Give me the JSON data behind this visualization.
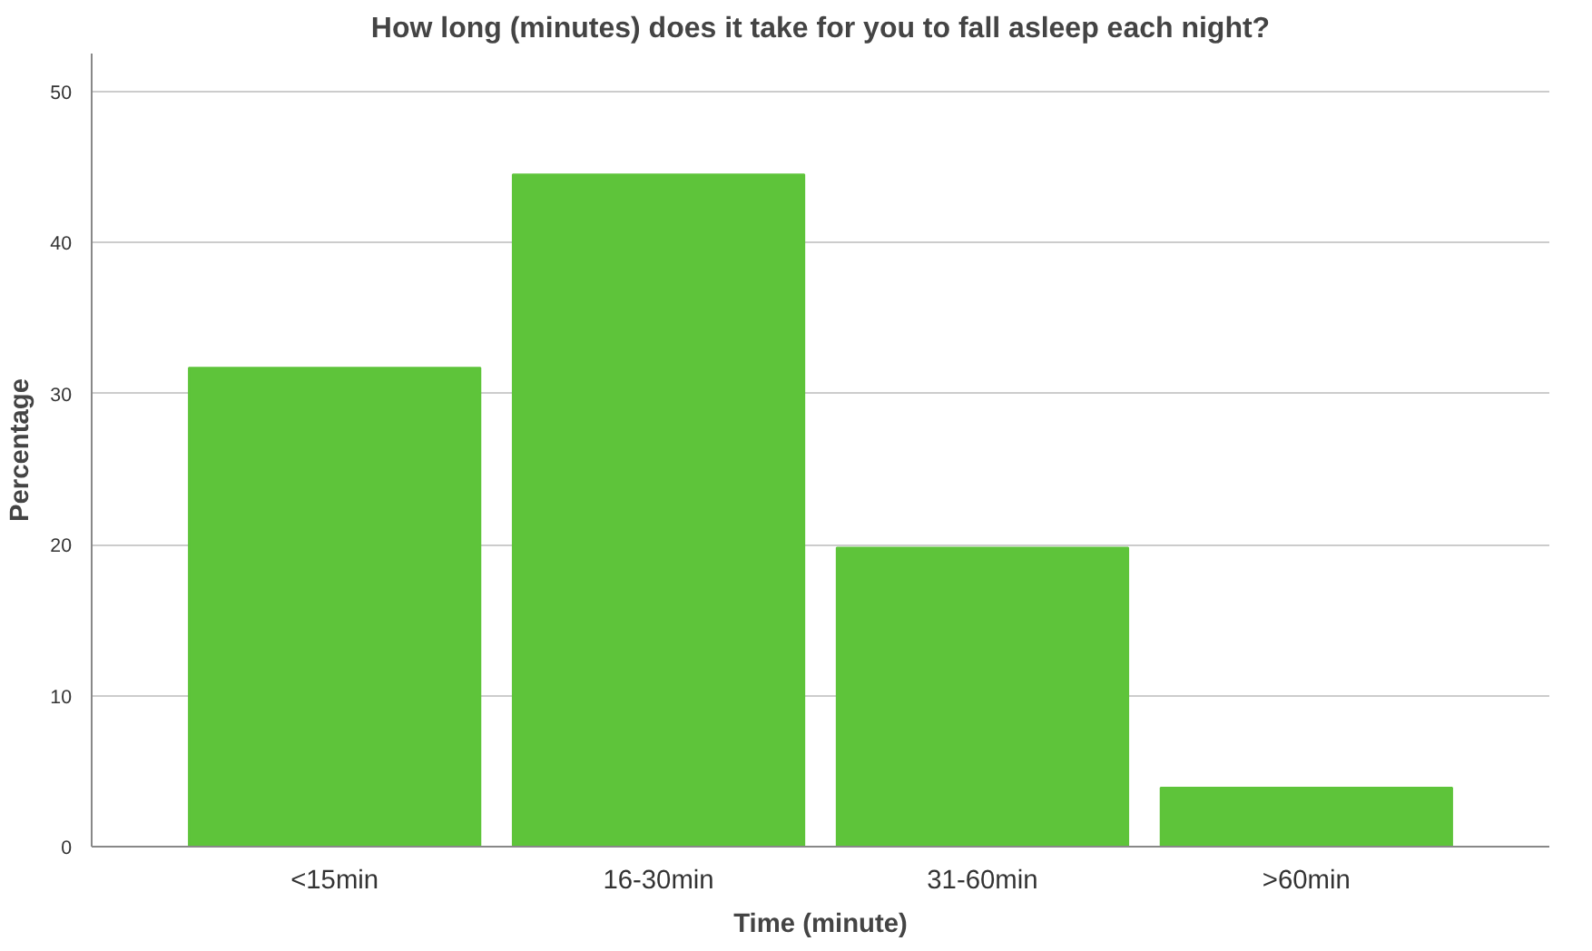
{
  "chart_data": {
    "type": "bar",
    "title": "How long (minutes) does it take for you to fall asleep each night?",
    "xlabel": "Time (minute)",
    "ylabel": "Percentage",
    "categories": [
      "<15min",
      "16-30min",
      "31-60min",
      ">60min"
    ],
    "values": [
      31.7,
      44.5,
      19.8,
      3.9
    ],
    "color": "#5ec43a",
    "ylim": [
      0,
      52.5
    ],
    "yticks": [
      0,
      10,
      20,
      30,
      40,
      50
    ],
    "grid": "y"
  }
}
